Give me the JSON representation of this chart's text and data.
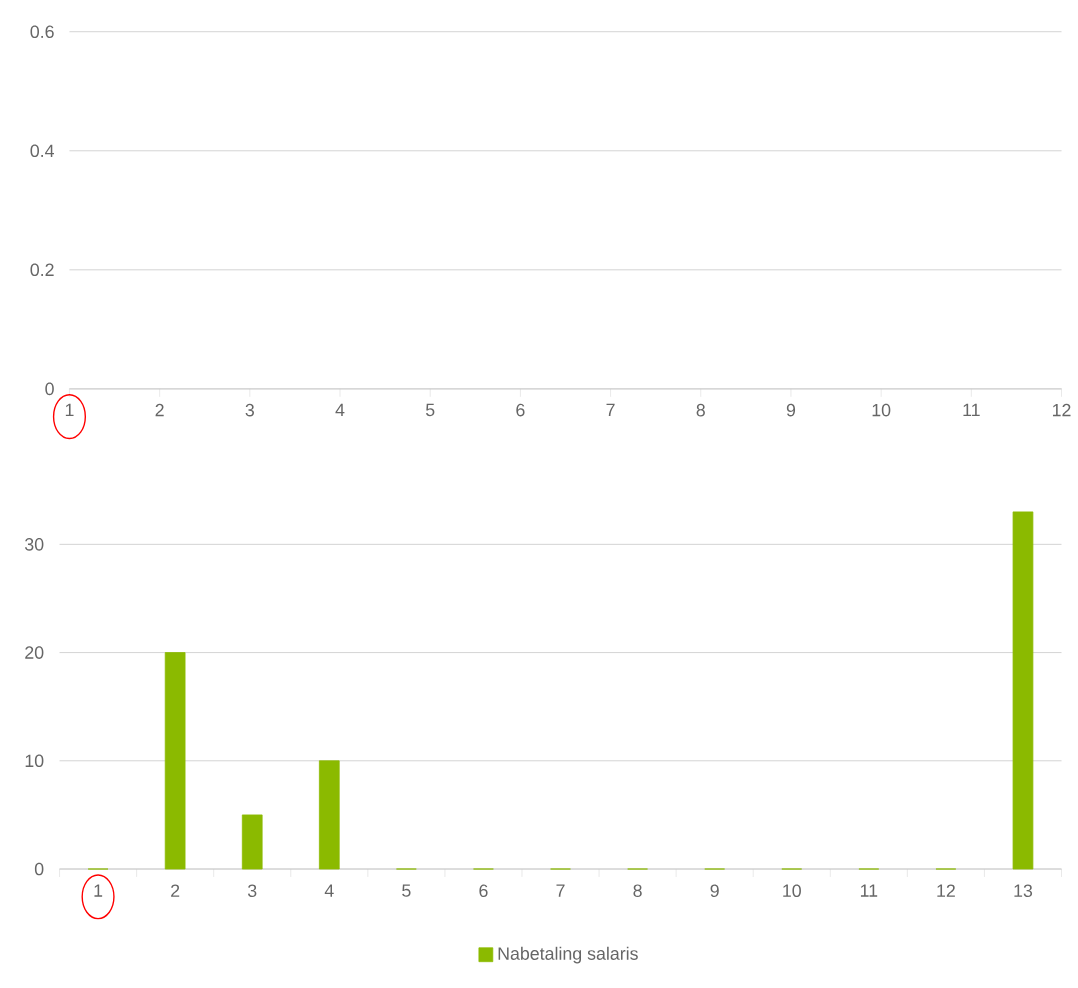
{
  "chart_data": [
    {
      "type": "line",
      "xlim": [
        1,
        12
      ],
      "xticks": [
        1,
        2,
        3,
        4,
        5,
        6,
        7,
        8,
        9,
        10,
        11,
        12
      ],
      "ylim": [
        0,
        0.6
      ],
      "yticks": [
        0,
        0.2,
        0.4,
        0.6
      ],
      "grid": "y"
    },
    {
      "type": "bar",
      "categories": [
        "1",
        "2",
        "3",
        "4",
        "5",
        "6",
        "7",
        "8",
        "9",
        "10",
        "11",
        "12",
        "13"
      ],
      "series": [
        {
          "name": "Nabetaling salaris",
          "color": "#8bba00",
          "values": [
            0,
            20,
            5,
            10,
            0,
            0,
            0,
            0,
            0,
            0,
            0,
            0,
            33
          ]
        }
      ],
      "ylim": [
        0,
        33
      ],
      "yticks": [
        0,
        10,
        20,
        30
      ],
      "grid": "y",
      "legend": "bottom"
    }
  ]
}
